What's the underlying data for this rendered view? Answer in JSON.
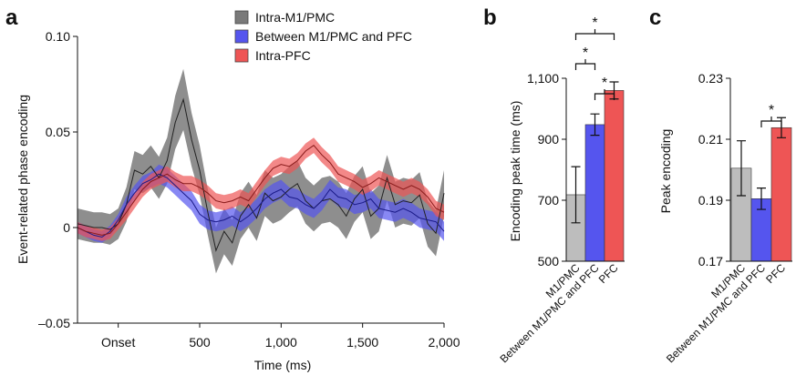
{
  "chart_data": [
    {
      "panel": "a",
      "type": "line",
      "xlabel": "Time (ms)",
      "ylabel": "Event-related phase encoding",
      "xlim": [
        -250,
        2000
      ],
      "ylim": [
        -0.05,
        0.1
      ],
      "x_ticks": [
        {
          "value": 0,
          "label": "Onset"
        },
        {
          "value": 500,
          "label": "500"
        },
        {
          "value": 1000,
          "label": "1,000"
        },
        {
          "value": 1500,
          "label": "1,500"
        },
        {
          "value": 2000,
          "label": "2,000"
        }
      ],
      "y_ticks": [
        {
          "value": 0.1,
          "label": "0.10"
        },
        {
          "value": 0.05,
          "label": "0.05"
        },
        {
          "value": 0,
          "label": "0"
        },
        {
          "value": -0.05,
          "label": "–0.05"
        }
      ],
      "legend_position": "top-right",
      "series": [
        {
          "name": "Intra-M1/PMC",
          "color": "#7a7a7a",
          "line_color": "#222222",
          "x": [
            -250,
            -200,
            -150,
            -100,
            -50,
            0,
            50,
            100,
            150,
            200,
            250,
            300,
            350,
            400,
            450,
            500,
            550,
            600,
            650,
            700,
            750,
            800,
            850,
            900,
            950,
            1000,
            1050,
            1100,
            1150,
            1200,
            1250,
            1300,
            1350,
            1400,
            1450,
            1500,
            1550,
            1600,
            1650,
            1700,
            1750,
            1800,
            1850,
            1900,
            1950,
            2000
          ],
          "y": [
            0.002,
            0.001,
            0.0,
            0.0,
            -0.001,
            0.002,
            0.012,
            0.03,
            0.028,
            0.032,
            0.026,
            0.035,
            0.055,
            0.067,
            0.046,
            0.03,
            0.008,
            -0.012,
            -0.002,
            -0.008,
            0.006,
            0.012,
            0.005,
            0.018,
            0.014,
            0.016,
            0.02,
            0.023,
            0.014,
            0.01,
            0.014,
            0.015,
            0.012,
            0.006,
            0.015,
            0.02,
            0.006,
            0.01,
            0.026,
            0.012,
            0.014,
            0.013,
            0.017,
            0.002,
            -0.003,
            0.018
          ],
          "band": [
            0.008,
            0.008,
            0.008,
            0.008,
            0.008,
            0.008,
            0.009,
            0.01,
            0.01,
            0.011,
            0.011,
            0.012,
            0.014,
            0.016,
            0.014,
            0.013,
            0.012,
            0.012,
            0.012,
            0.012,
            0.012,
            0.012,
            0.012,
            0.012,
            0.012,
            0.012,
            0.012,
            0.012,
            0.012,
            0.012,
            0.012,
            0.012,
            0.012,
            0.012,
            0.012,
            0.012,
            0.012,
            0.012,
            0.012,
            0.012,
            0.012,
            0.012,
            0.012,
            0.012,
            0.012,
            0.012
          ]
        },
        {
          "name": "Between M1/PMC and PFC",
          "color": "#5555ee",
          "line_color": "#1a1a88",
          "x": [
            -250,
            -200,
            -150,
            -100,
            -50,
            0,
            50,
            100,
            150,
            200,
            250,
            300,
            350,
            400,
            450,
            500,
            550,
            600,
            650,
            700,
            750,
            800,
            850,
            900,
            950,
            1000,
            1050,
            1100,
            1150,
            1200,
            1250,
            1300,
            1350,
            1400,
            1450,
            1500,
            1550,
            1600,
            1650,
            1700,
            1750,
            1800,
            1850,
            1900,
            1950,
            2000
          ],
          "y": [
            0.0,
            -0.002,
            -0.004,
            -0.005,
            -0.002,
            0.004,
            0.012,
            0.018,
            0.023,
            0.025,
            0.028,
            0.026,
            0.022,
            0.018,
            0.014,
            0.007,
            0.004,
            0.003,
            0.004,
            0.006,
            0.003,
            0.006,
            0.01,
            0.015,
            0.018,
            0.02,
            0.016,
            0.015,
            0.012,
            0.01,
            0.014,
            0.02,
            0.016,
            0.015,
            0.012,
            0.013,
            0.015,
            0.01,
            0.009,
            0.008,
            0.01,
            0.008,
            0.005,
            0.004,
            0.003,
            -0.002
          ],
          "band": [
            0.003,
            0.003,
            0.003,
            0.003,
            0.003,
            0.003,
            0.004,
            0.004,
            0.004,
            0.004,
            0.005,
            0.005,
            0.005,
            0.005,
            0.005,
            0.005,
            0.005,
            0.005,
            0.005,
            0.005,
            0.005,
            0.005,
            0.005,
            0.005,
            0.005,
            0.005,
            0.005,
            0.005,
            0.005,
            0.005,
            0.005,
            0.005,
            0.005,
            0.005,
            0.005,
            0.005,
            0.005,
            0.005,
            0.005,
            0.005,
            0.005,
            0.005,
            0.005,
            0.005,
            0.005,
            0.005
          ]
        },
        {
          "name": "Intra-PFC",
          "color": "#ee5555",
          "line_color": "#881a1a",
          "x": [
            -250,
            -200,
            -150,
            -100,
            -50,
            0,
            50,
            100,
            150,
            200,
            250,
            300,
            350,
            400,
            450,
            500,
            550,
            600,
            650,
            700,
            750,
            800,
            850,
            900,
            950,
            1000,
            1050,
            1100,
            1150,
            1200,
            1250,
            1300,
            1350,
            1400,
            1450,
            1500,
            1550,
            1600,
            1650,
            1700,
            1750,
            1800,
            1850,
            1900,
            1950,
            2000
          ],
          "y": [
            0.0,
            -0.002,
            -0.003,
            -0.004,
            -0.003,
            0.002,
            0.008,
            0.014,
            0.02,
            0.024,
            0.026,
            0.028,
            0.025,
            0.023,
            0.023,
            0.021,
            0.018,
            0.014,
            0.013,
            0.014,
            0.016,
            0.014,
            0.02,
            0.026,
            0.031,
            0.033,
            0.032,
            0.035,
            0.04,
            0.043,
            0.038,
            0.034,
            0.028,
            0.026,
            0.024,
            0.021,
            0.023,
            0.026,
            0.024,
            0.022,
            0.02,
            0.022,
            0.02,
            0.016,
            0.01,
            0.008
          ],
          "band": [
            0.003,
            0.003,
            0.003,
            0.003,
            0.003,
            0.003,
            0.004,
            0.004,
            0.004,
            0.004,
            0.004,
            0.004,
            0.004,
            0.004,
            0.004,
            0.004,
            0.004,
            0.004,
            0.004,
            0.004,
            0.004,
            0.004,
            0.004,
            0.004,
            0.004,
            0.004,
            0.004,
            0.004,
            0.004,
            0.004,
            0.004,
            0.004,
            0.004,
            0.004,
            0.004,
            0.004,
            0.004,
            0.004,
            0.004,
            0.004,
            0.004,
            0.004,
            0.004,
            0.004,
            0.004,
            0.004
          ]
        }
      ]
    },
    {
      "panel": "b",
      "type": "bar",
      "ylabel": "Encoding peak time (ms)",
      "ylim": [
        500,
        1100
      ],
      "y_ticks": [
        {
          "value": 500,
          "label": "500"
        },
        {
          "value": 700,
          "label": "700"
        },
        {
          "value": 900,
          "label": "900"
        },
        {
          "value": 1100,
          "label": "1,100"
        }
      ],
      "categories": [
        "M1/PMC",
        "Between M1/PMC and PFC",
        "PFC"
      ],
      "values": [
        718,
        948,
        1060
      ],
      "errors": [
        92,
        35,
        28
      ],
      "colors": [
        "#bdbdbd",
        "#5555ee",
        "#ee5555"
      ],
      "significance": [
        {
          "from": 1,
          "to": 2,
          "level": 2,
          "label": "*"
        },
        {
          "from": 2,
          "to": 3,
          "level": 1,
          "label": "*"
        },
        {
          "from": 1,
          "to": 3,
          "level": 3,
          "label": "*"
        }
      ]
    },
    {
      "panel": "c",
      "type": "bar",
      "ylabel": "Peak encoding",
      "ylim": [
        0.17,
        0.23
      ],
      "y_ticks": [
        {
          "value": 0.17,
          "label": "0.17"
        },
        {
          "value": 0.19,
          "label": "0.19"
        },
        {
          "value": 0.21,
          "label": "0.21"
        },
        {
          "value": 0.23,
          "label": "0.23"
        }
      ],
      "categories": [
        "M1/PMC",
        "Between M1/PMC and PFC",
        "PFC"
      ],
      "values": [
        0.2005,
        0.1905,
        0.2138
      ],
      "errors": [
        0.009,
        0.0035,
        0.0033
      ],
      "colors": [
        "#bdbdbd",
        "#5555ee",
        "#ee5555"
      ],
      "significance": [
        {
          "from": 2,
          "to": 3,
          "level": 1,
          "label": "*"
        }
      ]
    }
  ]
}
